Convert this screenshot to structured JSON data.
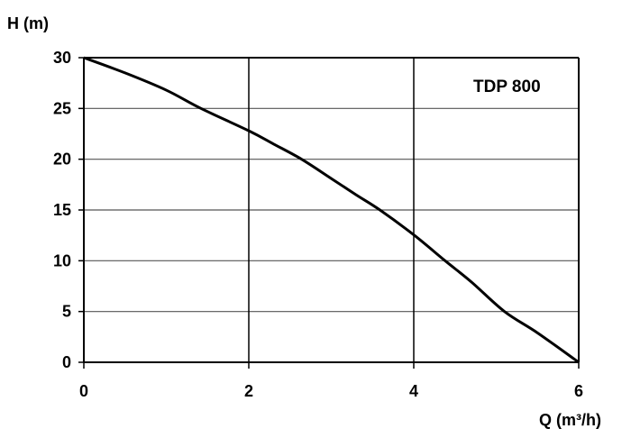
{
  "chart_data": {
    "type": "line",
    "title": "",
    "annotation": "TDP 800",
    "xlabel": "Q (m³/h)",
    "ylabel": "H (m)",
    "xlim": [
      0,
      6
    ],
    "ylim": [
      0,
      30
    ],
    "xticks": [
      0,
      2,
      4,
      6
    ],
    "yticks": [
      0,
      5,
      10,
      15,
      20,
      25,
      30
    ],
    "grid": true,
    "line_color": "#000000",
    "series": [
      {
        "x": [
          0,
          0.5,
          1,
          1.42,
          2,
          2.3,
          2.64,
          3,
          3.3,
          3.59,
          4,
          4.38,
          4.7,
          5.1,
          5.5,
          6
        ],
        "y": [
          30,
          28.5,
          26.8,
          25,
          22.8,
          21.5,
          20,
          18.1,
          16.5,
          15,
          12.55,
          10,
          7.9,
          5,
          2.9,
          0
        ]
      }
    ]
  }
}
